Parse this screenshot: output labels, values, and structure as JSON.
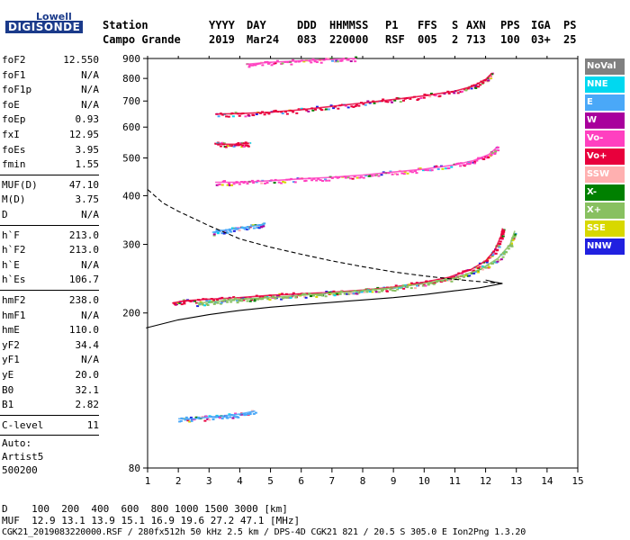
{
  "logo": {
    "top": "Lowell",
    "main": "DIGISONDE"
  },
  "header": {
    "row1": [
      "Station",
      "YYYY",
      "DAY",
      "DDD",
      "HHMMSS",
      "P1",
      "FFS",
      "S",
      "AXN",
      "PPS",
      "IGA",
      "PS"
    ],
    "row2": [
      "Campo Grande",
      "2019",
      "Mar24",
      "083",
      "220000",
      "RSF",
      "005",
      "2",
      "713",
      "100",
      "03+",
      "25"
    ]
  },
  "params_group1": [
    {
      "key": "foF2",
      "value": "12.550"
    },
    {
      "key": "foF1",
      "value": "N/A"
    },
    {
      "key": "foF1p",
      "value": "N/A"
    },
    {
      "key": "foE",
      "value": "N/A"
    },
    {
      "key": "foEp",
      "value": "0.93"
    },
    {
      "key": "fxI",
      "value": "12.95"
    },
    {
      "key": "foEs",
      "value": "3.95"
    },
    {
      "key": "fmin",
      "value": "1.55"
    }
  ],
  "params_group2": [
    {
      "key": "MUF(D)",
      "value": "47.10"
    },
    {
      "key": "M(D)",
      "value": "3.75"
    },
    {
      "key": "D",
      "value": "N/A"
    }
  ],
  "params_group3": [
    {
      "key": "h`F",
      "value": "213.0"
    },
    {
      "key": "h`F2",
      "value": "213.0"
    },
    {
      "key": "h`E",
      "value": "N/A"
    },
    {
      "key": "h`Es",
      "value": "106.7"
    }
  ],
  "params_group4": [
    {
      "key": "hmF2",
      "value": "238.0"
    },
    {
      "key": "hmF1",
      "value": "N/A"
    },
    {
      "key": "hmE",
      "value": "110.0"
    },
    {
      "key": "yF2",
      "value": "34.4"
    },
    {
      "key": "yF1",
      "value": "N/A"
    },
    {
      "key": "yE",
      "value": "20.0"
    },
    {
      "key": "B0",
      "value": "32.1"
    },
    {
      "key": "B1",
      "value": "2.82"
    }
  ],
  "params_group5": [
    {
      "key": "C-level",
      "value": "11"
    }
  ],
  "auto": {
    "line1": "Auto:",
    "line2": "Artist5",
    "line3": "500200"
  },
  "legend": [
    {
      "label": "NoVal",
      "color": "#808080"
    },
    {
      "label": "NNE",
      "color": "#00d8f0"
    },
    {
      "label": "E",
      "color": "#4aa8f8"
    },
    {
      "label": "W",
      "color": "#a8009c"
    },
    {
      "label": "Vo-",
      "color": "#ff40c0"
    },
    {
      "label": "Vo+",
      "color": "#e8003c"
    },
    {
      "label": "SSW",
      "color": "#ffb0b0"
    },
    {
      "label": "X-",
      "color": "#008000"
    },
    {
      "label": "X+",
      "color": "#88c060"
    },
    {
      "label": "SSE",
      "color": "#d8d800"
    },
    {
      "label": "NNW",
      "color": "#2020e0"
    }
  ],
  "footer": {
    "d_row": "D    100  200  400  600  800 1000 1500 3000 [km]",
    "muf_row": "MUF  12.9 13.1 13.9 15.1 16.9 19.6 27.2 47.1 [MHz]",
    "file_row": "CGK21_2019083220000.RSF / 280fx512h 50 kHz 2.5 km / DPS-4D CGK21 821 / 20.5 S 305.0 E Ion2Png 1.3.20"
  },
  "chart_data": {
    "type": "scatter",
    "xlim": [
      1,
      15
    ],
    "ylim": [
      80,
      900
    ],
    "y_log": true,
    "x_ticks": [
      1,
      2,
      3,
      4,
      5,
      6,
      7,
      8,
      9,
      10,
      11,
      12,
      13,
      14,
      15
    ],
    "y_ticks": [
      80,
      200,
      300,
      400,
      500,
      600,
      700,
      800,
      900
    ],
    "traces": [
      {
        "name": "F2 O-trace",
        "color": "#e8003c",
        "x": [
          1.8,
          2.2,
          3,
          4,
          5,
          6,
          7,
          8,
          9,
          10,
          10.8,
          11.5,
          12,
          12.3,
          12.5,
          12.55
        ],
        "y": [
          212,
          215,
          217,
          219,
          222,
          224,
          226,
          229,
          233,
          240,
          247,
          258,
          272,
          290,
          315,
          330
        ]
      },
      {
        "name": "F2 X-trace",
        "color": "#88c060",
        "x": [
          2.6,
          3.2,
          4,
          5,
          6,
          7,
          8,
          9,
          10,
          11,
          11.8,
          12.4,
          12.8,
          12.95
        ],
        "y": [
          212,
          214,
          217,
          219,
          222,
          225,
          228,
          232,
          238,
          246,
          258,
          276,
          300,
          325
        ]
      },
      {
        "name": "2F echo",
        "color": "#ff40c0",
        "x": [
          3.2,
          4,
          5,
          6,
          7,
          8,
          9,
          10,
          11,
          11.6,
          12.1,
          12.4
        ],
        "y": [
          433,
          433,
          437,
          442,
          446,
          452,
          460,
          468,
          480,
          492,
          510,
          535
        ]
      },
      {
        "name": "3F echo",
        "color": "#e8003c",
        "x": [
          3.2,
          4,
          5,
          6,
          7,
          8,
          9,
          10,
          11,
          11.6,
          12,
          12.2
        ],
        "y": [
          648,
          650,
          655,
          665,
          678,
          692,
          706,
          722,
          742,
          765,
          795,
          825
        ]
      },
      {
        "name": "4F echo",
        "color": "#ff40c0",
        "x": [
          4.2,
          5,
          6,
          7,
          7.8
        ],
        "y": [
          870,
          880,
          888,
          895,
          900
        ]
      },
      {
        "name": "Es trace",
        "color": "#4aa8f8",
        "x": [
          2,
          2.5,
          3,
          3.5,
          4,
          4.5
        ],
        "y": [
          107,
          107,
          108,
          109,
          110,
          112
        ]
      },
      {
        "name": "F1 region",
        "color": "#4aa8f8",
        "x": [
          3.1,
          3.5,
          4,
          4.5,
          4.8
        ],
        "y": [
          322,
          326,
          330,
          335,
          338
        ]
      },
      {
        "name": "2E echo",
        "color": "#e8003c",
        "x": [
          3.2,
          3.6,
          4,
          4.3
        ],
        "y": [
          543,
          542,
          542,
          545
        ]
      }
    ],
    "profile_solid": {
      "x": [
        0.95,
        2,
        3,
        4,
        5,
        6,
        7,
        8,
        9,
        10,
        11,
        11.8,
        12.3,
        12.55,
        12.3,
        12
      ],
      "y": [
        183,
        192,
        198,
        203,
        207,
        210,
        213,
        216,
        219,
        223,
        228,
        232,
        236,
        238,
        240,
        243
      ]
    },
    "profile_dashed": {
      "x": [
        1,
        1.5,
        2,
        3,
        4,
        5,
        6,
        7,
        8,
        9,
        10,
        11,
        12,
        12.55
      ],
      "y": [
        415,
        383,
        365,
        335,
        310,
        295,
        283,
        272,
        263,
        255,
        249,
        244,
        240,
        238
      ]
    }
  }
}
